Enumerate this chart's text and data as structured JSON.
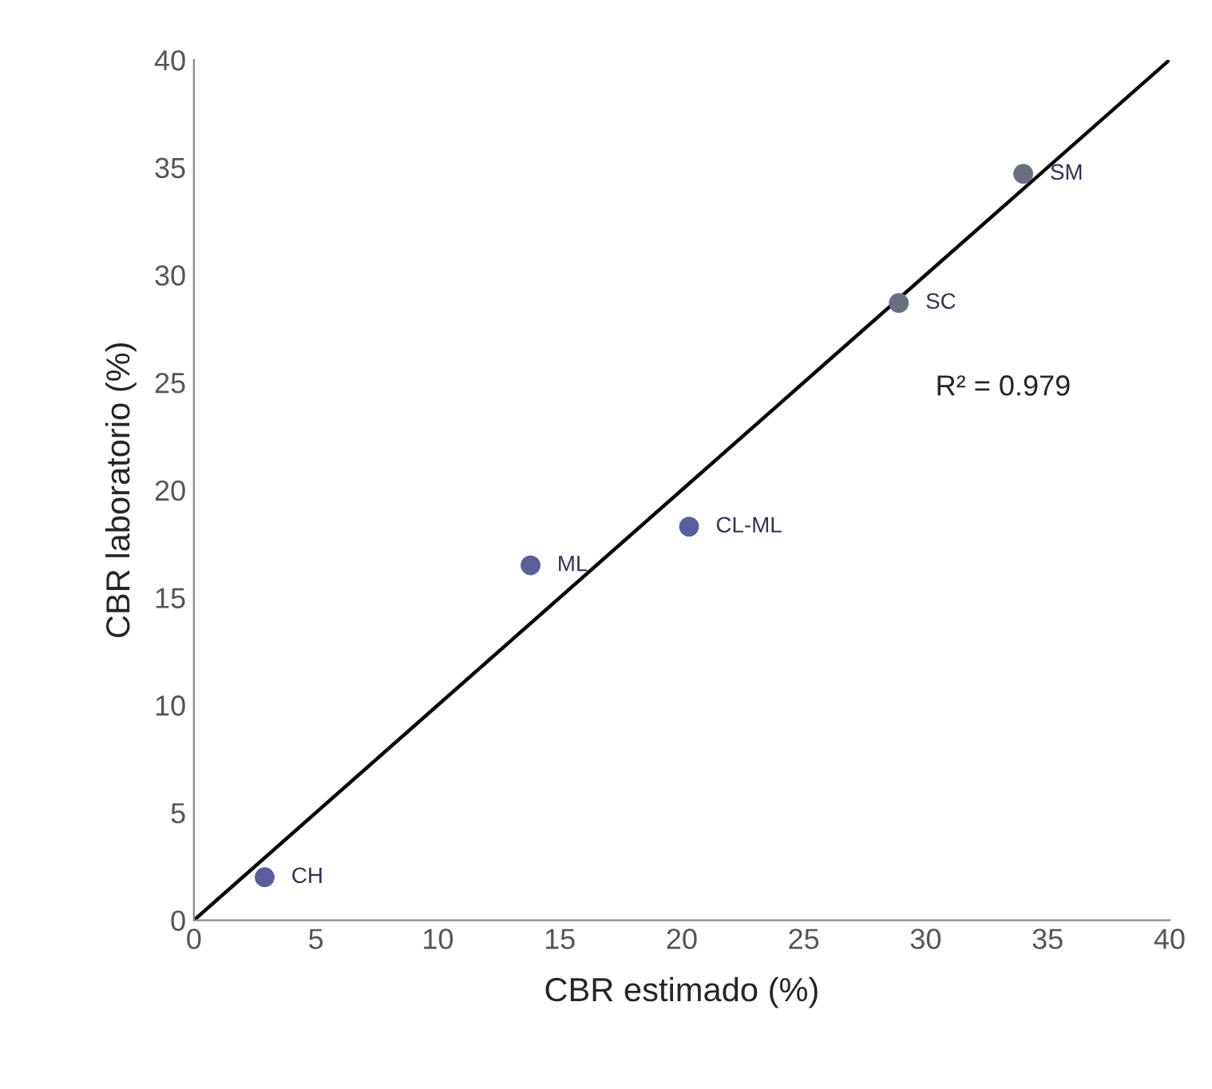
{
  "chart_data": {
    "type": "scatter",
    "xlabel": "CBR estimado (%)",
    "ylabel": "CBR laboratorio (%)",
    "xlim": [
      0,
      40
    ],
    "ylim": [
      0,
      40
    ],
    "xticks": [
      0,
      5,
      10,
      15,
      20,
      25,
      30,
      35,
      40
    ],
    "yticks": [
      0,
      5,
      10,
      15,
      20,
      25,
      30,
      35,
      40
    ],
    "grid": false,
    "legend": false,
    "series": [
      {
        "marker": "circle",
        "x": [
          2.9,
          13.8,
          20.3,
          28.9,
          34.0
        ],
        "values": [
          2.0,
          16.5,
          18.3,
          28.7,
          34.7
        ],
        "colors": [
          "#5b5e9c",
          "#5b5e9c",
          "#5b5e9c",
          "#6b7080",
          "#6b7080"
        ]
      },
      {
        "type": "line",
        "x": [
          0,
          40
        ],
        "values": [
          0,
          40
        ],
        "color": "#000000",
        "line_style": "solid"
      }
    ],
    "annotations": [
      {
        "text": "CH",
        "x": 2.9,
        "y": 2.0
      },
      {
        "text": "ML",
        "x": 13.8,
        "y": 16.5
      },
      {
        "text": "CL-ML",
        "x": 20.3,
        "y": 18.3
      },
      {
        "text": "SC",
        "x": 28.9,
        "y": 28.7
      },
      {
        "text": "SM",
        "x": 34.0,
        "y": 34.7
      },
      "R² = 0.979"
    ]
  }
}
